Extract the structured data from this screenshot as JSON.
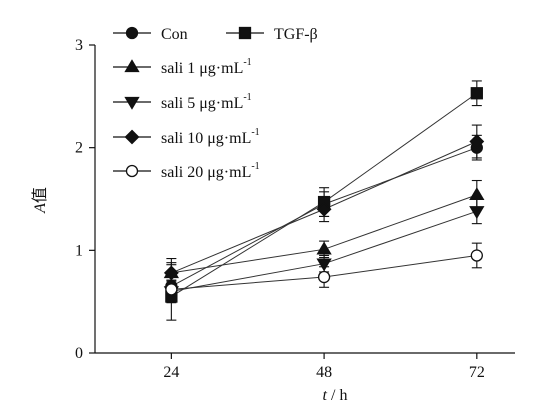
{
  "chart_data": {
    "type": "line",
    "x": [
      24,
      48,
      72
    ],
    "xticks": [
      "24",
      "48",
      "72"
    ],
    "yticks": [
      "0",
      "1",
      "2",
      "3"
    ],
    "xlim": [
      12,
      78
    ],
    "ylim": [
      0,
      3
    ],
    "xlabel_var": "t",
    "xlabel_unit": " / h",
    "ylabel_var": "A",
    "ylabel_rest": "值",
    "grid": false,
    "legend_position": "top-left",
    "series": [
      {
        "name": "Con",
        "marker": "circle-filled",
        "values": [
          0.65,
          1.45,
          2.0
        ],
        "errors": [
          0.06,
          0.12,
          0.12
        ]
      },
      {
        "name": "TGF-β",
        "marker": "square-filled",
        "values": [
          0.55,
          1.47,
          2.53
        ],
        "errors": [
          0.06,
          0.14,
          0.12
        ]
      },
      {
        "name": "sali 1 μg·mL",
        "sup": "-1",
        "marker": "triangle-up-filled",
        "values": [
          0.78,
          1.01,
          1.54
        ],
        "errors": [
          0.1,
          0.08,
          0.14
        ]
      },
      {
        "name": "sali 5 μg·mL",
        "sup": "-1",
        "marker": "triangle-down-filled",
        "values": [
          0.6,
          0.87,
          1.38
        ],
        "errors": [
          0.07,
          0.08,
          0.12
        ]
      },
      {
        "name": "sali 10 μg·mL",
        "sup": "-1",
        "marker": "diamond-filled",
        "values": [
          0.78,
          1.4,
          2.06
        ],
        "errors": [
          0.08,
          0.12,
          0.16
        ]
      },
      {
        "name": "sali 20 μg·mL",
        "sup": "-1",
        "marker": "circle-open",
        "values": [
          0.62,
          0.74,
          0.95
        ],
        "errors": [
          0.3,
          0.1,
          0.12
        ]
      }
    ]
  }
}
